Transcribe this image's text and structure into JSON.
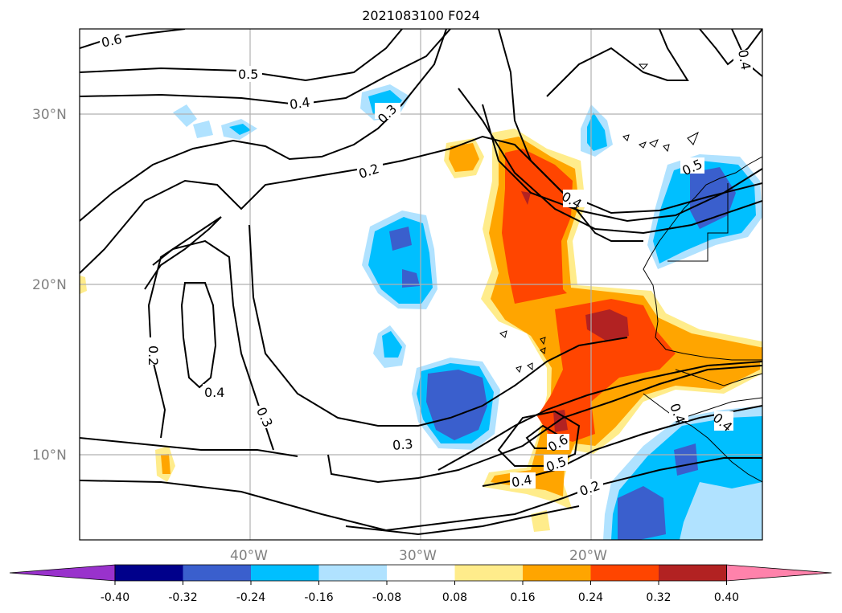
{
  "title": "2021083100 F024",
  "lat_labels": [
    "30°N",
    "20°N",
    "10°N"
  ],
  "lon_labels": [
    "40°W",
    "30°W",
    "20°W"
  ],
  "contour_labels": [
    "0.6",
    "0.5",
    "0.4",
    "0.3",
    "0.2",
    "0.2",
    "0.4",
    "0.3",
    "0.3",
    "0.4",
    "0.6",
    "0.5",
    "0.4",
    "0.2",
    "0.5",
    "0.4",
    "0.4",
    "0.4"
  ],
  "colorbar": {
    "ticks": [
      "-0.40",
      "-0.32",
      "-0.24",
      "-0.16",
      "-0.08",
      "0.08",
      "0.16",
      "0.24",
      "0.32",
      "0.40"
    ],
    "colors": [
      "#9932cc",
      "#00008b",
      "#3a5fcd",
      "#00bfff",
      "#b0e2ff",
      "#ffffff",
      "#ffec8b",
      "#ffa500",
      "#ff4500",
      "#b22222",
      "#ff82ab"
    ]
  }
}
